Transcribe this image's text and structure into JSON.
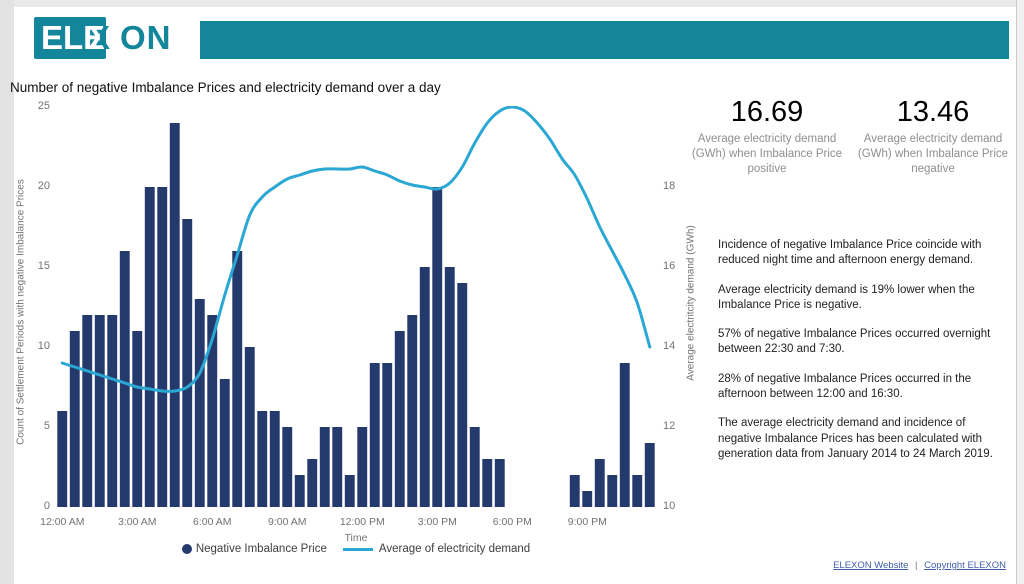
{
  "header": {
    "logo": {
      "box_text": "ELE",
      "x_text": "X",
      "rest_text": "ON"
    },
    "brand_teal": "#13869C"
  },
  "title": "Number of negative Imbalance Prices and electricity demand over a day",
  "chart_data": {
    "type": "bar+line combo",
    "title": "Number of negative Imbalance Prices and electricity demand over a day",
    "xlabel": "Time",
    "x_ticks": [
      "12:00 AM",
      "3:00 AM",
      "6:00 AM",
      "9:00 AM",
      "12:00 PM",
      "3:00 PM",
      "6:00 PM",
      "9:00 PM"
    ],
    "categories": [
      "12:00 AM",
      "12:30 AM",
      "1:00 AM",
      "1:30 AM",
      "2:00 AM",
      "2:30 AM",
      "3:00 AM",
      "3:30 AM",
      "4:00 AM",
      "4:30 AM",
      "5:00 AM",
      "5:30 AM",
      "6:00 AM",
      "6:30 AM",
      "7:00 AM",
      "7:30 AM",
      "8:00 AM",
      "8:30 AM",
      "9:00 AM",
      "9:30 AM",
      "10:00 AM",
      "10:30 AM",
      "11:00 AM",
      "11:30 AM",
      "12:00 PM",
      "12:30 PM",
      "1:00 PM",
      "1:30 PM",
      "2:00 PM",
      "2:30 PM",
      "3:00 PM",
      "3:30 PM",
      "4:00 PM",
      "4:30 PM",
      "5:00 PM",
      "5:30 PM",
      "6:00 PM",
      "6:30 PM",
      "7:00 PM",
      "7:30 PM",
      "8:00 PM",
      "8:30 PM",
      "9:00 PM",
      "9:30 PM",
      "10:00 PM",
      "10:30 PM",
      "11:00 PM",
      "11:30 PM"
    ],
    "series": [
      {
        "name": "Negative Imbalance Price",
        "type": "bar",
        "axis": "left",
        "color": "#243A6C",
        "values": [
          6,
          11,
          12,
          12,
          12,
          16,
          11,
          20,
          20,
          24,
          18,
          13,
          12,
          8,
          16,
          10,
          6,
          6,
          5,
          2,
          3,
          5,
          5,
          2,
          5,
          9,
          9,
          11,
          12,
          15,
          20,
          15,
          14,
          5,
          3,
          3,
          0,
          0,
          0,
          0,
          0,
          2,
          1,
          3,
          2,
          9,
          2,
          4
        ]
      },
      {
        "name": "Average of electricity demand",
        "type": "line",
        "axis": "right",
        "color": "#2BA7D4",
        "values": [
          13.6,
          13.5,
          13.4,
          13.3,
          13.2,
          13.1,
          13.0,
          12.95,
          12.9,
          12.9,
          13.0,
          13.35,
          14.2,
          15.3,
          16.3,
          17.3,
          17.75,
          18.0,
          18.2,
          18.3,
          18.4,
          18.45,
          18.45,
          18.45,
          18.5,
          18.4,
          18.3,
          18.15,
          18.05,
          18.0,
          17.95,
          18.1,
          18.5,
          19.1,
          19.6,
          19.9,
          20.0,
          19.9,
          19.6,
          19.2,
          18.7,
          18.3,
          17.7,
          17.0,
          16.4,
          15.8,
          15.1,
          14.0
        ]
      }
    ],
    "left_axis": {
      "label": "Count of Settlement Periods with negative Imbalance Prices",
      "min": 0,
      "max": 25,
      "ticks": [
        0,
        5,
        10,
        15,
        20,
        25
      ]
    },
    "right_axis": {
      "label": "Average electritcity demand (GWh)",
      "min": 10,
      "max": 20,
      "ticks": [
        10,
        12,
        14,
        16,
        18
      ]
    },
    "grid": "off",
    "legend_position": "bottom"
  },
  "stats": [
    {
      "value": "16.69",
      "label": "Average electricity demand (GWh) when Imbalance Price positive"
    },
    {
      "value": "13.46",
      "label": "Average electricity demand (GWh) when Imbalance Price negative"
    }
  ],
  "insights": [
    "Incidence of negative Imbalance Price coincide with reduced night time and afternoon energy demand.",
    "Average electricity demand is 19% lower when the Imbalance Price is negative.",
    "57% of negative Imbalance Prices occurred overnight between 22:30 and 7:30.",
    "28% of negative Imbalance Prices occurred in the afternoon between 12:00 and 16:30.",
    "The average electricity demand and incidence of negative Imbalance Prices has been calculated with generation data from January 2014 to 24 March 2019."
  ],
  "footer": {
    "separator": "|",
    "links": [
      {
        "label": "ELEXON Website"
      },
      {
        "label": "Copyright ELEXON"
      }
    ]
  }
}
